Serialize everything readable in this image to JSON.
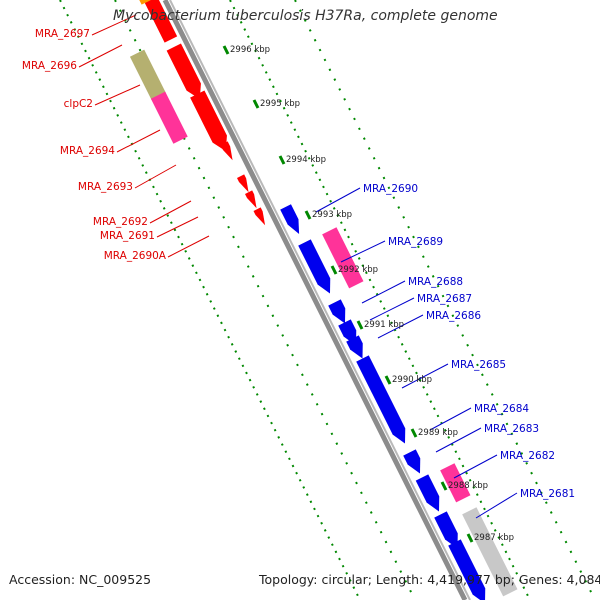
{
  "title": "Mycobacterium tuberculosis H37Ra, complete genome",
  "footer": {
    "accession": "Accession: NC_009525",
    "summary": "Topology: circular; Length: 4,419,977 bp; Genes: 4,084"
  },
  "colors": {
    "background": "#ffffff",
    "backbone": "#8c8c8c",
    "forward_gene": "#ff0000",
    "reverse_gene": "#0000ee",
    "pink_feature": "#ff3399",
    "olive_feature": "#b5b070",
    "grey_feature": "#c8c8c8",
    "orange_feature": "#ff9900",
    "tick": "#008800",
    "left_label": "#dd0000",
    "right_label": "#0000cc",
    "kbp_label": "#222222"
  },
  "ruler_labels": [
    "2996 kbp",
    "2995 kbp",
    "2994 kbp",
    "2993 kbp",
    "2992 kbp",
    "2991 kbp",
    "2990 kbp",
    "2989 kbp",
    "2988 kbp",
    "2987 kbp"
  ],
  "left_labels": [
    "MRA_2697",
    "MRA_2696",
    "clpC2",
    "MRA_2694",
    "MRA_2693",
    "MRA_2692",
    "MRA_2691",
    "MRA_2690A"
  ],
  "right_labels": [
    "MRA_2690",
    "MRA_2689",
    "MRA_2688",
    "MRA_2687",
    "MRA_2686",
    "MRA_2685",
    "MRA_2684",
    "MRA_2683",
    "MRA_2682",
    "MRA_2681"
  ]
}
